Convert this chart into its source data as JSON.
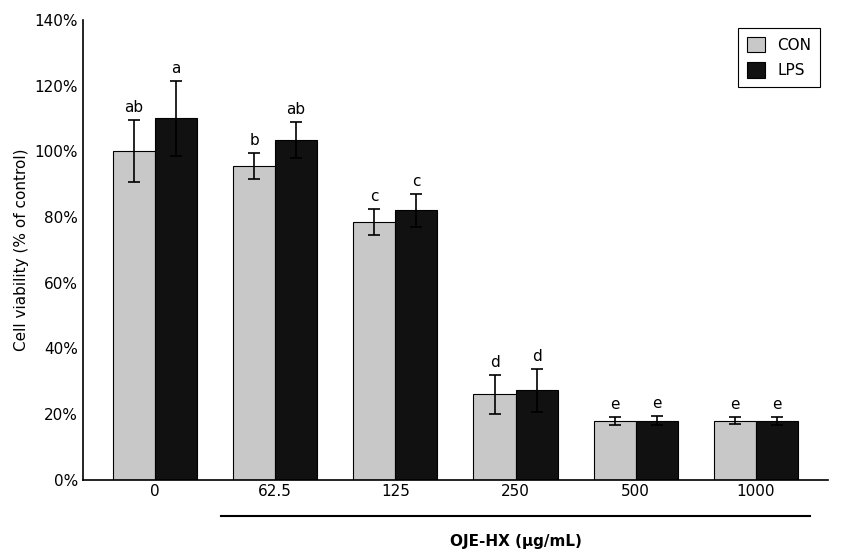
{
  "categories": [
    "0",
    "62.5",
    "125",
    "250",
    "500",
    "1000"
  ],
  "con_values": [
    1.0,
    0.955,
    0.785,
    0.26,
    0.178,
    0.18
  ],
  "lps_values": [
    1.1,
    1.035,
    0.82,
    0.272,
    0.18,
    0.178
  ],
  "con_errors": [
    0.095,
    0.04,
    0.04,
    0.06,
    0.012,
    0.012
  ],
  "lps_errors": [
    0.115,
    0.055,
    0.05,
    0.065,
    0.013,
    0.013
  ],
  "con_labels": [
    "ab",
    "b",
    "c",
    "d",
    "e",
    "e"
  ],
  "lps_labels": [
    "a",
    "ab",
    "c",
    "d",
    "e",
    "e"
  ],
  "con_color": "#c8c8c8",
  "lps_color": "#111111",
  "ylabel": "Cell viability (% of control)",
  "xlabel": "OJE-HX (μg/mL)",
  "ylim": [
    0,
    1.4
  ],
  "yticks": [
    0,
    0.2,
    0.4,
    0.6,
    0.8,
    1.0,
    1.2,
    1.4
  ],
  "ytick_labels": [
    "0%",
    "20%",
    "40%",
    "60%",
    "80%",
    "100%",
    "120%",
    "140%"
  ],
  "bar_width": 0.35,
  "legend_labels": [
    "CON",
    "LPS"
  ],
  "label_fontsize": 11,
  "tick_fontsize": 11,
  "annotation_fontsize": 11,
  "figsize": [
    8.42,
    5.58
  ],
  "dpi": 100
}
